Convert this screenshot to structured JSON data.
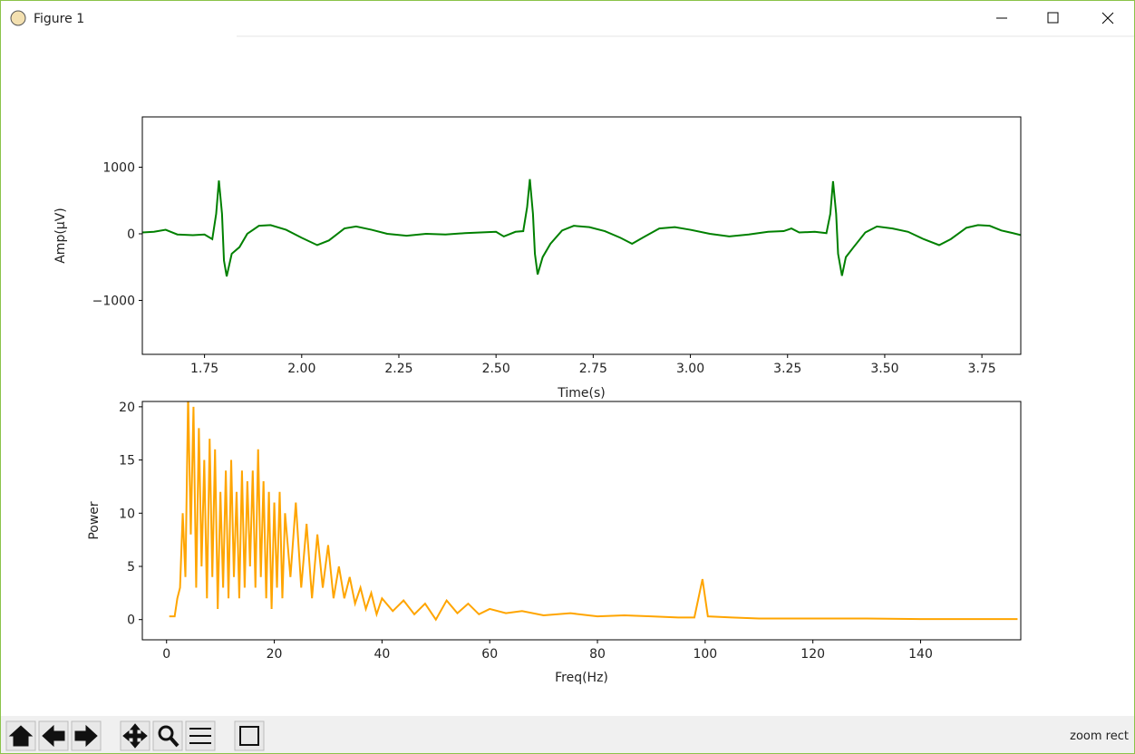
{
  "window": {
    "title": "Figure 1",
    "status": "zoom rect"
  },
  "chart_data": [
    {
      "type": "line",
      "xlabel": "Time(s)",
      "ylabel": "Amp(µV)",
      "color": "#008000",
      "x": [
        1.59,
        1.62,
        1.65,
        1.68,
        1.72,
        1.75,
        1.77,
        1.78,
        1.787,
        1.795,
        1.8,
        1.807,
        1.82,
        1.84,
        1.86,
        1.89,
        1.92,
        1.96,
        2.0,
        2.04,
        2.07,
        2.11,
        2.14,
        2.18,
        2.22,
        2.27,
        2.32,
        2.37,
        2.42,
        2.46,
        2.5,
        2.52,
        2.55,
        2.57,
        2.58,
        2.587,
        2.595,
        2.6,
        2.607,
        2.62,
        2.64,
        2.67,
        2.7,
        2.74,
        2.78,
        2.82,
        2.85,
        2.88,
        2.92,
        2.96,
        3.0,
        3.05,
        3.1,
        3.15,
        3.2,
        3.24,
        3.26,
        3.28,
        3.32,
        3.35,
        3.36,
        3.367,
        3.375,
        3.38,
        3.39,
        3.4,
        3.42,
        3.45,
        3.48,
        3.52,
        3.56,
        3.6,
        3.64,
        3.67,
        3.71,
        3.74,
        3.77,
        3.8,
        3.83,
        3.85
      ],
      "values": [
        20,
        30,
        60,
        -10,
        -20,
        -10,
        -80,
        300,
        800,
        300,
        -400,
        -640,
        -300,
        -200,
        0,
        120,
        130,
        60,
        -60,
        -170,
        -100,
        80,
        110,
        60,
        0,
        -30,
        0,
        -10,
        10,
        20,
        30,
        -40,
        30,
        40,
        400,
        820,
        300,
        -300,
        -610,
        -350,
        -150,
        50,
        120,
        100,
        40,
        -60,
        -150,
        -50,
        80,
        100,
        60,
        0,
        -40,
        -10,
        30,
        40,
        80,
        20,
        30,
        10,
        300,
        790,
        300,
        -300,
        -630,
        -350,
        -200,
        20,
        110,
        80,
        30,
        -80,
        -170,
        -80,
        90,
        130,
        120,
        50,
        10,
        -20
      ],
      "xlim": [
        1.59,
        3.85
      ],
      "ylim": [
        -1810,
        1755
      ],
      "xticks": [
        1.75,
        {
          "value": 2,
          "label": "2.00"
        },
        2.25,
        {
          "value": 2.5,
          "label": "2.50"
        },
        2.75,
        {
          "value": 3,
          "label": "3.00"
        },
        3.25,
        {
          "value": 3.5,
          "label": "3.50"
        },
        3.75
      ],
      "yticks": [
        1000,
        0,
        {
          "value": -1000,
          "label": "−1000"
        }
      ]
    },
    {
      "type": "line",
      "xlabel": "Freq(Hz)",
      "ylabel": "Power",
      "color": "#ffa500",
      "x": [
        0.5,
        1.5,
        2,
        2.5,
        3,
        3.5,
        4,
        4.5,
        5,
        5.5,
        6,
        6.5,
        7,
        7.5,
        8,
        8.5,
        9,
        9.5,
        10,
        10.5,
        11,
        11.5,
        12,
        12.5,
        13,
        13.5,
        14,
        14.5,
        15,
        15.5,
        16,
        16.5,
        17,
        17.5,
        18,
        18.5,
        19,
        19.5,
        20,
        20.5,
        21,
        21.5,
        22,
        23,
        24,
        25,
        26,
        27,
        28,
        29,
        30,
        31,
        32,
        33,
        34,
        35,
        36,
        37,
        38,
        39,
        40,
        42,
        44,
        46,
        48,
        50,
        52,
        54,
        56,
        58,
        60,
        63,
        66,
        70,
        75,
        80,
        85,
        90,
        95,
        98,
        99.5,
        100.5,
        105,
        110,
        120,
        130,
        140,
        150,
        158
      ],
      "values": [
        0.3,
        0.3,
        2,
        3,
        10,
        4,
        21,
        8,
        20,
        3,
        18,
        5,
        15,
        2,
        17,
        4,
        16,
        1,
        12,
        3,
        14,
        2,
        15,
        4,
        12,
        2,
        14,
        3,
        13,
        5,
        14,
        3,
        16,
        4,
        13,
        2,
        12,
        1,
        11,
        3,
        12,
        2,
        10,
        4,
        11,
        3,
        9,
        2,
        8,
        3,
        7,
        2,
        5,
        2,
        4,
        1.5,
        3,
        1,
        2.5,
        0.5,
        2,
        0.8,
        1.8,
        0.5,
        1.5,
        0,
        1.8,
        0.6,
        1.5,
        0.5,
        1,
        0.6,
        0.8,
        0.4,
        0.6,
        0.3,
        0.4,
        0.3,
        0.2,
        0.2,
        3.8,
        0.3,
        0.2,
        0.1,
        0.1,
        0.1,
        0.05,
        0.05,
        0.05
      ],
      "xlim": [
        -4.5,
        158.6
      ],
      "ylim": [
        -1.9,
        20.5
      ],
      "xticks": [
        0,
        20,
        40,
        60,
        80,
        100,
        120,
        140
      ],
      "yticks": [
        0,
        5,
        10,
        15,
        20
      ]
    }
  ]
}
